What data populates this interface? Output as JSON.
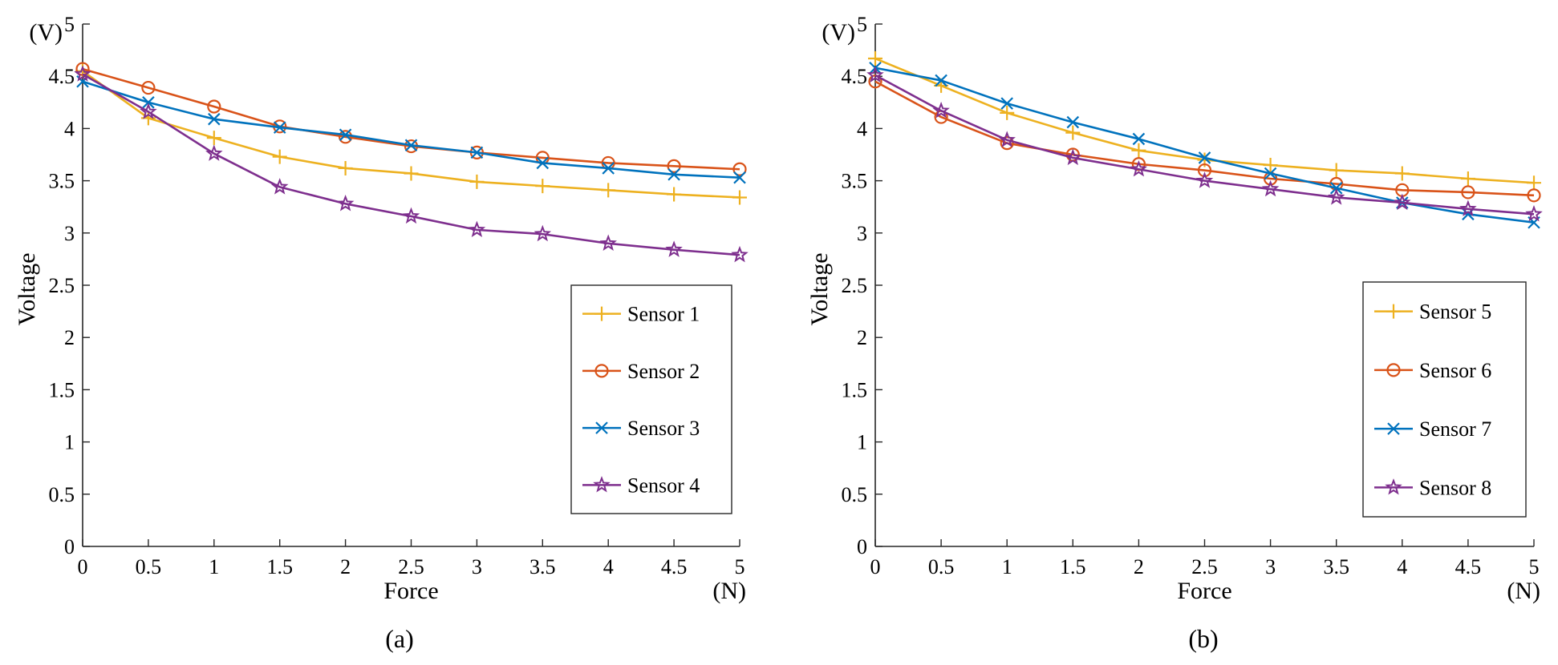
{
  "chart_data": [
    {
      "type": "line",
      "panel_label": "(a)",
      "xlabel": "Force",
      "ylabel": "Voltage",
      "x_unit": "(N)",
      "y_unit": "(V)",
      "xlim": [
        0,
        5
      ],
      "ylim": [
        0,
        5
      ],
      "xticks": [
        "0",
        "0.5",
        "1",
        "1.5",
        "2",
        "2.5",
        "3",
        "3.5",
        "4",
        "4.5",
        "5"
      ],
      "yticks": [
        "0",
        "0.5",
        "1",
        "1.5",
        "2",
        "2.5",
        "3",
        "3.5",
        "4",
        "4.5",
        "5"
      ],
      "grid": false,
      "legend_position": "lower-right",
      "x": [
        0,
        0.5,
        1,
        1.5,
        2,
        2.5,
        3,
        3.5,
        4,
        4.5,
        5
      ],
      "series": [
        {
          "name": "Sensor 1",
          "color": "#EDB120",
          "marker": "plus",
          "values": [
            4.55,
            4.1,
            3.91,
            3.73,
            3.62,
            3.57,
            3.49,
            3.45,
            3.41,
            3.37,
            3.34
          ]
        },
        {
          "name": "Sensor 2",
          "color": "#D95319",
          "marker": "circle",
          "values": [
            4.57,
            4.39,
            4.21,
            4.02,
            3.92,
            3.83,
            3.77,
            3.72,
            3.67,
            3.64,
            3.61
          ]
        },
        {
          "name": "Sensor 3",
          "color": "#0072BD",
          "marker": "cross",
          "values": [
            4.45,
            4.25,
            4.09,
            4.01,
            3.94,
            3.84,
            3.77,
            3.67,
            3.62,
            3.56,
            3.53
          ]
        },
        {
          "name": "Sensor 4",
          "color": "#7E2F8E",
          "marker": "star",
          "values": [
            4.52,
            4.16,
            3.76,
            3.44,
            3.28,
            3.16,
            3.03,
            2.99,
            2.9,
            2.84,
            2.79
          ]
        }
      ]
    },
    {
      "type": "line",
      "panel_label": "(b)",
      "xlabel": "Force",
      "ylabel": "Voltage",
      "x_unit": "(N)",
      "y_unit": "(V)",
      "xlim": [
        0,
        5
      ],
      "ylim": [
        0,
        5
      ],
      "xticks": [
        "0",
        "0.5",
        "1",
        "1.5",
        "2",
        "2.5",
        "3",
        "3.5",
        "4",
        "4.5",
        "5"
      ],
      "yticks": [
        "0",
        "0.5",
        "1",
        "1.5",
        "2",
        "2.5",
        "3",
        "3.5",
        "4",
        "4.5",
        "5"
      ],
      "grid": false,
      "legend_position": "lower-right",
      "x": [
        0,
        0.5,
        1,
        1.5,
        2,
        2.5,
        3,
        3.5,
        4,
        4.5,
        5
      ],
      "series": [
        {
          "name": "Sensor 5",
          "color": "#EDB120",
          "marker": "plus",
          "values": [
            4.67,
            4.41,
            4.15,
            3.96,
            3.79,
            3.7,
            3.65,
            3.6,
            3.57,
            3.52,
            3.48
          ]
        },
        {
          "name": "Sensor 6",
          "color": "#D95319",
          "marker": "circle",
          "values": [
            4.45,
            4.11,
            3.86,
            3.75,
            3.66,
            3.6,
            3.52,
            3.47,
            3.41,
            3.39,
            3.36
          ]
        },
        {
          "name": "Sensor 7",
          "color": "#0072BD",
          "marker": "cross",
          "values": [
            4.58,
            4.46,
            4.24,
            4.06,
            3.9,
            3.72,
            3.57,
            3.43,
            3.29,
            3.18,
            3.1
          ]
        },
        {
          "name": "Sensor 8",
          "color": "#7E2F8E",
          "marker": "star",
          "values": [
            4.51,
            4.17,
            3.89,
            3.72,
            3.61,
            3.5,
            3.42,
            3.34,
            3.29,
            3.23,
            3.18
          ]
        }
      ]
    }
  ]
}
